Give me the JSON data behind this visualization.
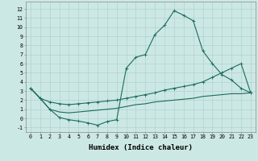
{
  "xlabel": "Humidex (Indice chaleur)",
  "xlim": [
    -0.5,
    23.5
  ],
  "ylim": [
    -1.5,
    12.8
  ],
  "yticks": [
    -1,
    0,
    1,
    2,
    3,
    4,
    5,
    6,
    7,
    8,
    9,
    10,
    11,
    12
  ],
  "xticks": [
    0,
    1,
    2,
    3,
    4,
    5,
    6,
    7,
    8,
    9,
    10,
    11,
    12,
    13,
    14,
    15,
    16,
    17,
    18,
    19,
    20,
    21,
    22,
    23
  ],
  "background_color": "#cce8e4",
  "grid_color": "#aacccc",
  "line_color": "#1a6b5e",
  "line1_x": [
    0,
    1,
    2,
    3,
    4,
    5,
    6,
    7,
    8,
    9,
    10,
    11,
    12,
    13,
    14,
    15,
    16,
    17,
    18,
    19,
    20,
    21,
    22,
    23
  ],
  "line1_y": [
    3.3,
    2.2,
    1.0,
    0.1,
    -0.15,
    -0.3,
    -0.5,
    -0.75,
    -0.35,
    -0.15,
    5.5,
    6.7,
    7.0,
    9.2,
    10.2,
    11.8,
    11.3,
    10.7,
    7.4,
    6.0,
    4.8,
    4.2,
    3.3,
    2.8
  ],
  "line1_markers": [
    0,
    1,
    2,
    3,
    4,
    5,
    6,
    7,
    8,
    9,
    10,
    11,
    12,
    13,
    14,
    15,
    16,
    17,
    18,
    19,
    20,
    21,
    22,
    23
  ],
  "line2_x": [
    0,
    1,
    2,
    3,
    4,
    5,
    6,
    7,
    8,
    9,
    10,
    11,
    12,
    13,
    14,
    15,
    16,
    17,
    18,
    19,
    20,
    21,
    22,
    23
  ],
  "line2_y": [
    3.3,
    2.2,
    1.8,
    1.6,
    1.5,
    1.6,
    1.7,
    1.8,
    1.9,
    2.0,
    2.2,
    2.4,
    2.6,
    2.8,
    3.1,
    3.3,
    3.5,
    3.7,
    4.0,
    4.5,
    5.0,
    5.5,
    6.0,
    2.8
  ],
  "line3_x": [
    0,
    1,
    2,
    3,
    4,
    5,
    6,
    7,
    8,
    9,
    10,
    11,
    12,
    13,
    14,
    15,
    16,
    17,
    18,
    19,
    20,
    21,
    22,
    23
  ],
  "line3_y": [
    3.3,
    2.2,
    1.0,
    0.7,
    0.6,
    0.7,
    0.8,
    0.9,
    1.0,
    1.1,
    1.3,
    1.5,
    1.6,
    1.8,
    1.9,
    2.0,
    2.1,
    2.2,
    2.4,
    2.5,
    2.6,
    2.7,
    2.7,
    2.8
  ],
  "label_fontsize": 6.5,
  "tick_fontsize": 4.8,
  "linewidth": 0.8,
  "markersize": 2.5
}
